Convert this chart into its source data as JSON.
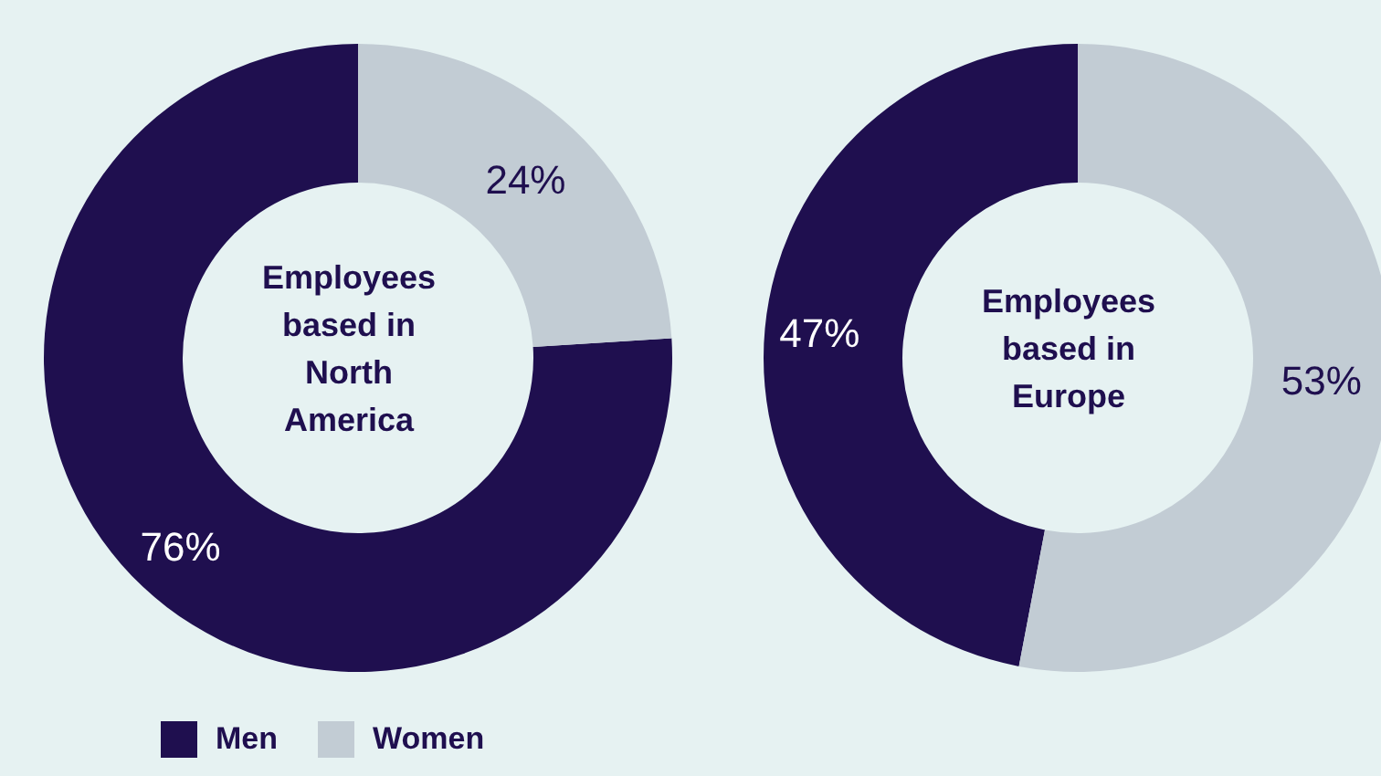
{
  "chart_data": [
    {
      "type": "donut",
      "title": "Employees based in North America",
      "categories": [
        "Men",
        "Women"
      ],
      "values": [
        76,
        24
      ],
      "colors": [
        "#1f0f4f",
        "#c2ccd4"
      ],
      "value_labels": [
        "76%",
        "24%"
      ],
      "legend": "bottom"
    },
    {
      "type": "donut",
      "title": "Employees based in Europe",
      "categories": [
        null,
        null
      ],
      "values": [
        47,
        53
      ],
      "colors": [
        "#1f0f4f",
        "#c2ccd4"
      ],
      "value_labels": [
        "47%",
        "53%"
      ]
    }
  ]
}
